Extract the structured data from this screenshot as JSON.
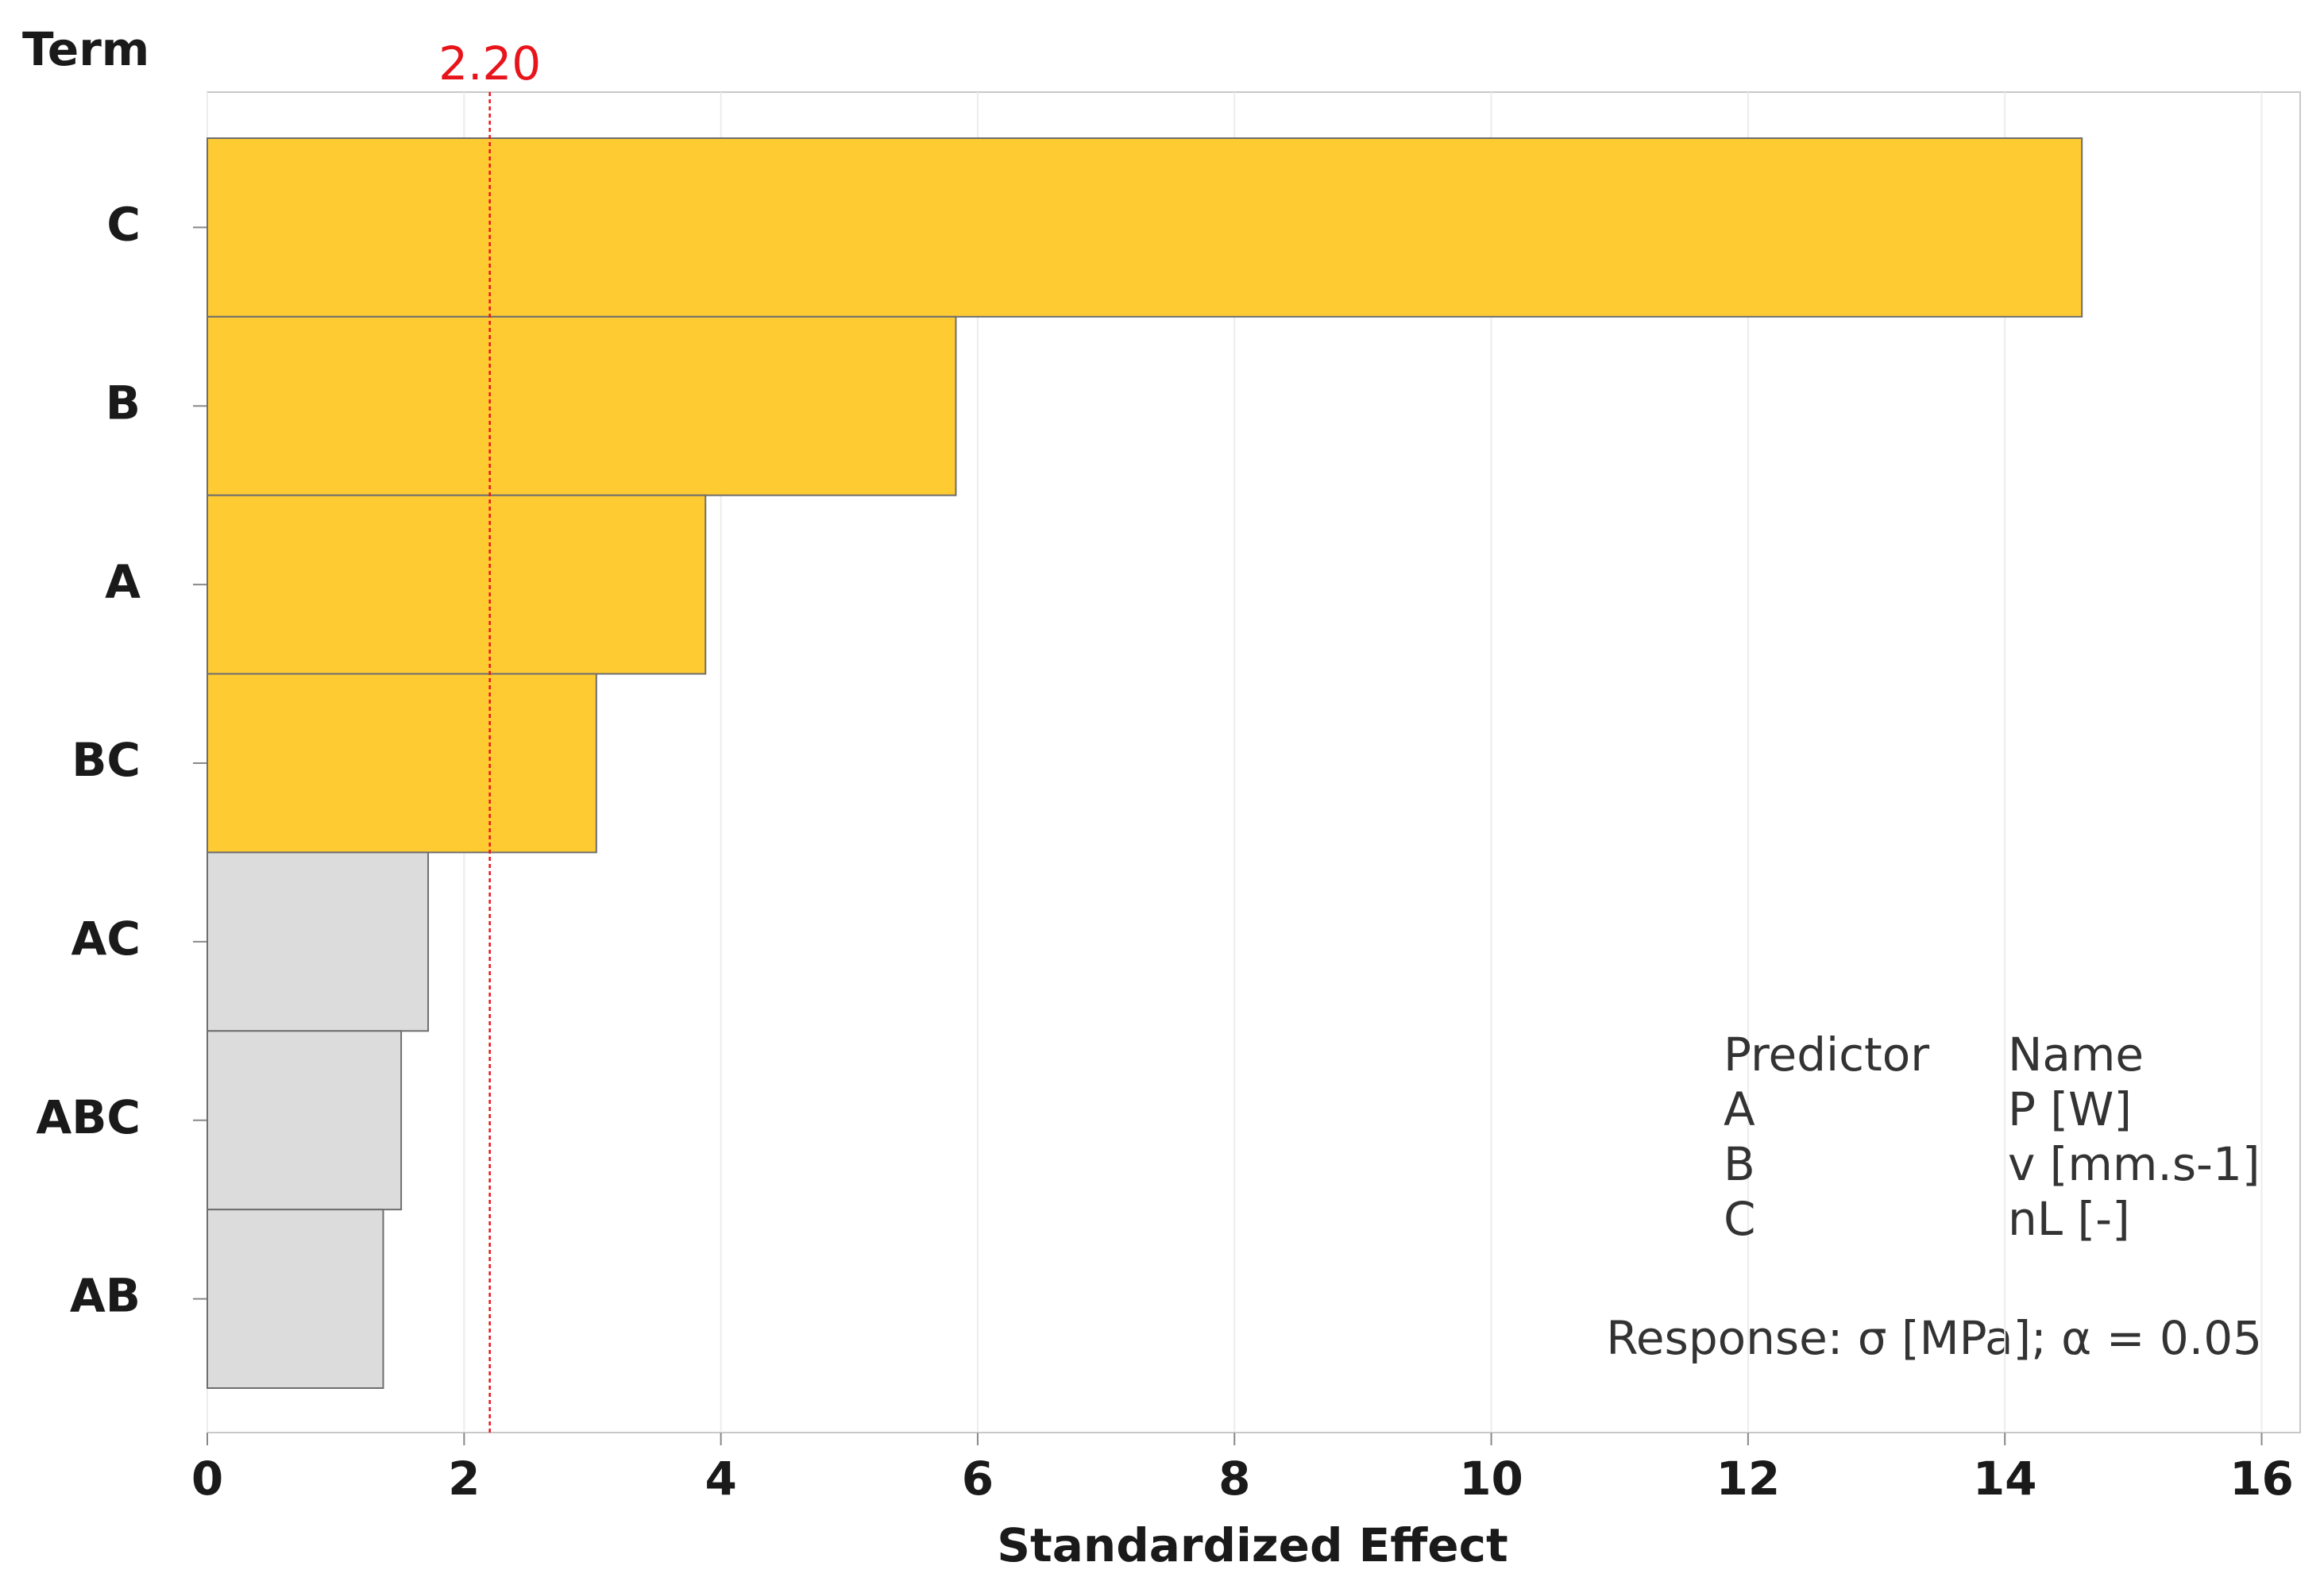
{
  "chart_data": {
    "type": "bar",
    "orientation": "horizontal",
    "y_axis_label": "Term",
    "x_axis_label": "Standardized Effect",
    "categories": [
      "C",
      "B",
      "A",
      "BC",
      "AC",
      "ABC",
      "AB"
    ],
    "values": [
      14.6,
      5.83,
      3.88,
      3.03,
      1.72,
      1.51,
      1.37
    ],
    "colors": [
      "#ffcb33",
      "#ffcb33",
      "#ffcb33",
      "#ffcb33",
      "#dcdcdc",
      "#dcdcdc",
      "#dcdcdc"
    ],
    "xlim": [
      0,
      16.3
    ],
    "xticks": [
      0,
      2,
      4,
      6,
      8,
      10,
      12,
      14,
      16
    ],
    "grid": true,
    "reference_line": {
      "value": 2.2,
      "label": "2.20",
      "color": "#e8141b"
    },
    "legend_table": {
      "header": [
        "Predictor",
        "Name"
      ],
      "rows": [
        [
          "A",
          "P [W]"
        ],
        [
          "B",
          "v [mm.s-1]"
        ],
        [
          "C",
          "nL [-]"
        ]
      ]
    },
    "annotation": "Response: σ [MPa]; α = 0.05"
  }
}
